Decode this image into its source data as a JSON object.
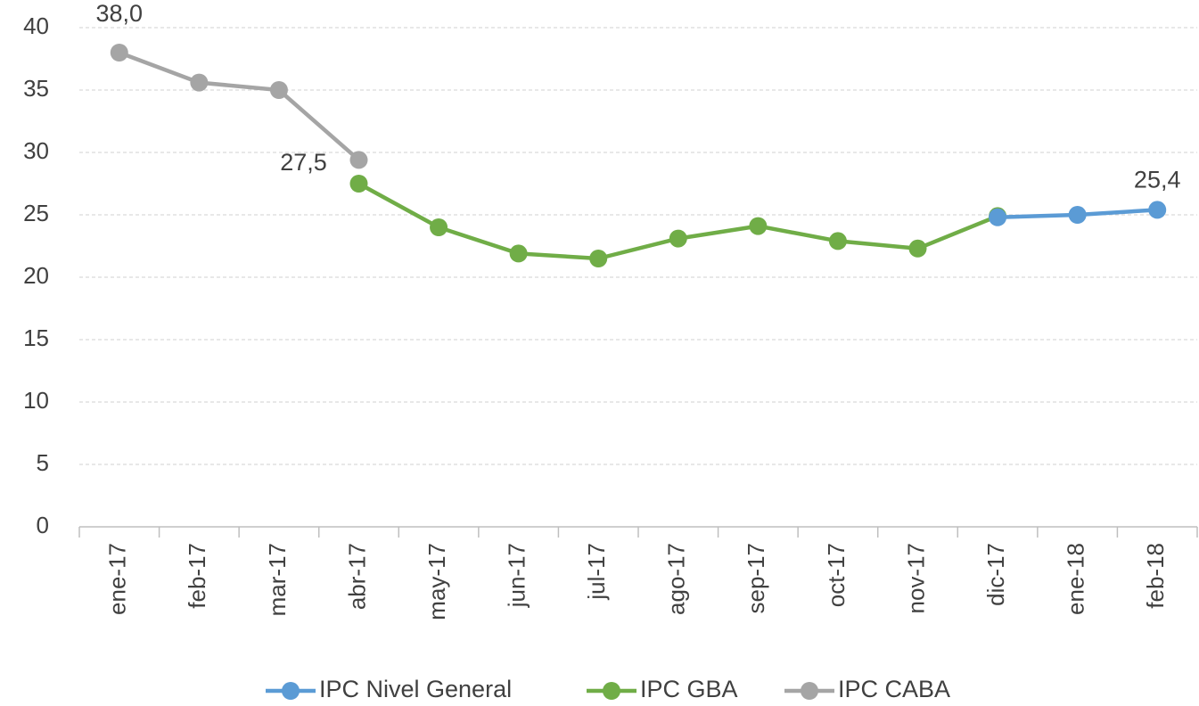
{
  "chart_data": {
    "type": "line",
    "categories": [
      "ene-17",
      "feb-17",
      "mar-17",
      "abr-17",
      "may-17",
      "jun-17",
      "jul-17",
      "ago-17",
      "sep-17",
      "oct-17",
      "nov-17",
      "dic-17",
      "ene-18",
      "feb-18"
    ],
    "series": [
      {
        "name": "IPC Nivel General",
        "color": "#5b9bd5",
        "values": [
          null,
          null,
          null,
          null,
          null,
          null,
          null,
          null,
          null,
          null,
          null,
          24.8,
          25.0,
          25.4
        ],
        "value_labels": [
          null,
          null,
          null,
          null,
          null,
          null,
          null,
          null,
          null,
          null,
          null,
          null,
          null,
          "25,4"
        ]
      },
      {
        "name": "IPC GBA",
        "color": "#70ad47",
        "values": [
          null,
          null,
          null,
          27.5,
          24.0,
          21.9,
          21.5,
          23.1,
          24.1,
          22.9,
          22.3,
          24.9,
          null,
          null
        ],
        "value_labels": [
          null,
          null,
          null,
          "27,5",
          null,
          null,
          null,
          null,
          null,
          null,
          null,
          null,
          null,
          null
        ]
      },
      {
        "name": "IPC CABA",
        "color": "#a5a5a5",
        "values": [
          38.0,
          35.6,
          35.0,
          29.4,
          null,
          null,
          null,
          null,
          null,
          null,
          null,
          null,
          null,
          null
        ],
        "value_labels": [
          "38,0",
          null,
          null,
          null,
          null,
          null,
          null,
          null,
          null,
          null,
          null,
          null,
          null,
          null
        ]
      }
    ],
    "ylim": [
      0,
      40
    ],
    "yticks": [
      0,
      5,
      10,
      15,
      20,
      25,
      30,
      35,
      40
    ],
    "grid": true,
    "legend": "bottom"
  }
}
